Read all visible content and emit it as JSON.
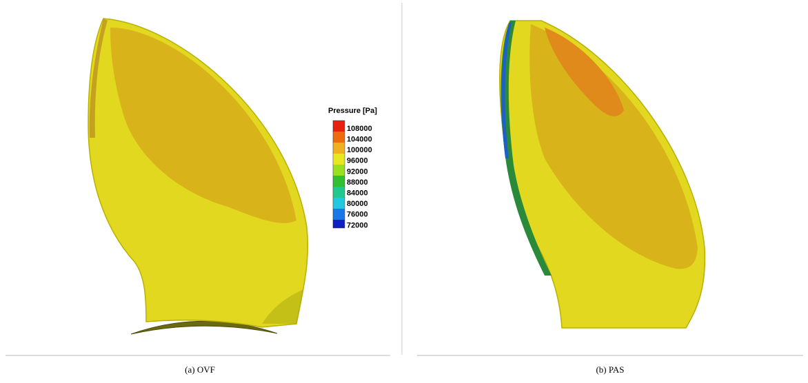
{
  "panels": [
    {
      "caption": "(a) OVF"
    },
    {
      "caption": "(b) PAS"
    }
  ],
  "legend": {
    "title": "Pressure [Pa]",
    "labels": [
      "108000",
      "104000",
      "100000",
      "96000",
      "92000",
      "88000",
      "84000",
      "80000",
      "76000",
      "72000"
    ]
  }
}
